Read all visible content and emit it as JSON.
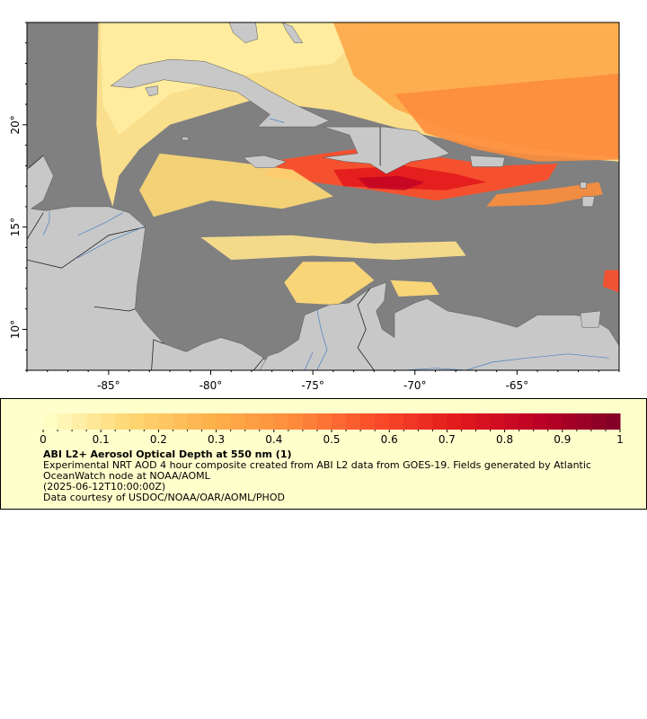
{
  "map": {
    "type": "map",
    "product": "ABI L2+ Aerosol Optical Depth at 550 nm",
    "lon_range": [
      -89.0,
      -60.0
    ],
    "lat_range": [
      8.0,
      25.0
    ],
    "lon_ticks": [
      -85,
      -80,
      -75,
      -70,
      -65
    ],
    "lat_ticks": [
      10,
      15,
      20
    ],
    "lon_tick_labels": [
      "-85°",
      "-80°",
      "-75°",
      "-70°",
      "-65°"
    ],
    "lat_tick_labels": [
      "10°",
      "15°",
      "20°"
    ],
    "colors": {
      "ocean_no_data": "#808080",
      "land": "#c8c8c8",
      "coast": "#555555",
      "rivers": "#4a80c0",
      "aod_low": "#ffffcc",
      "aod_mid": "#fd8d3c",
      "aod_high": "#800026"
    }
  },
  "legend": {
    "colorbar": {
      "min": 0,
      "max": 1,
      "tick_labels": [
        "0",
        "0.1",
        "0.2",
        "0.3",
        "0.4",
        "0.5",
        "0.6",
        "0.7",
        "0.8",
        "0.9",
        "1"
      ],
      "colors": [
        "#ffffcc",
        "#fed976",
        "#feb24c",
        "#fd8d3c",
        "#fc4e2a",
        "#e31a1c",
        "#bd0026",
        "#800026"
      ]
    },
    "title": "ABI L2+ Aerosol Optical Depth at 550 nm (1)",
    "description": "Experimental NRT AOD 4 hour composite created from ABI L2 data from GOES-19. Fields generated by Atlantic OceanWatch node at NOAA/AOML",
    "timestamp": "(2025-06-12T10:00:00Z)",
    "credit": "Data courtesy of USDOC/NOAA/OAR/AOML/PHOD",
    "background": "#ffffcc"
  }
}
